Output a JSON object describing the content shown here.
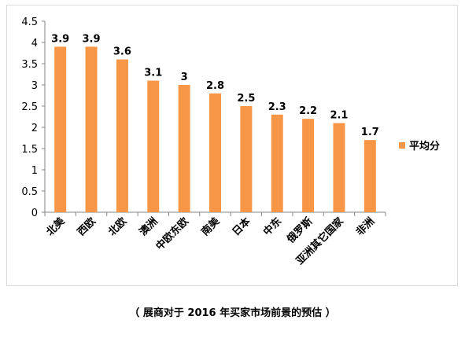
{
  "chart_data": {
    "type": "bar",
    "categories": [
      "北美",
      "西欧",
      "北欧",
      "澳洲",
      "中欧东欧",
      "南美",
      "日本",
      "中东",
      "俄罗斯",
      "亚洲其它国家",
      "非洲"
    ],
    "series": [
      {
        "name": "平均分",
        "values": [
          3.9,
          3.9,
          3.6,
          3.1,
          3,
          2.8,
          2.5,
          2.3,
          2.2,
          2.1,
          1.7
        ],
        "color": "#f79646"
      }
    ],
    "data_labels": [
      "3.9",
      "3.9",
      "3.6",
      "3.1",
      "3",
      "2.8",
      "2.5",
      "2.3",
      "2.2",
      "2.1",
      "1.7"
    ],
    "ylim": [
      0,
      4.5
    ],
    "y_ticks": [
      "0",
      "0.5",
      "1",
      "1.5",
      "2",
      "2.5",
      "3",
      "3.5",
      "4",
      "4.5"
    ],
    "grid": false,
    "legend": "right",
    "title": "",
    "xlabel": "",
    "ylabel": ""
  },
  "caption": "（ 展商对于 2016 年买家市场前景的预估 ）"
}
